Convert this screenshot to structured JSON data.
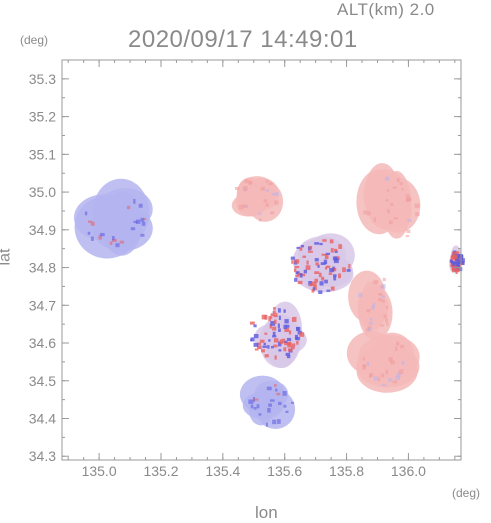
{
  "header": {
    "altitude": "ALT(km) 2.0",
    "timestamp": "2020/09/17 14:49:01"
  },
  "chart_data": {
    "type": "heatmap",
    "title": "2020/09/17 14:49:01",
    "subtitle": "ALT(km) 2.0",
    "xlabel": "lon",
    "ylabel": "lat",
    "x_unit": "(deg)",
    "y_unit": "(deg)",
    "xlim": [
      134.88,
      136.17
    ],
    "ylim": [
      34.29,
      35.35
    ],
    "x_ticks": [
      135.0,
      135.2,
      135.4,
      135.6,
      135.8,
      136.0
    ],
    "x_tick_labels": [
      "135.0",
      "135.2",
      "135.4",
      "135.6",
      "135.8",
      "136.0"
    ],
    "y_ticks": [
      34.3,
      34.4,
      34.5,
      34.6,
      34.7,
      34.8,
      34.9,
      35.0,
      35.1,
      35.2,
      35.3
    ],
    "y_tick_labels": [
      "34.3",
      "34.4",
      "34.5",
      "34.6",
      "34.7",
      "34.8",
      "34.9",
      "35.0",
      "35.1",
      "35.2",
      "35.3"
    ],
    "grid": false,
    "colors": {
      "positive": "#f4b8b8",
      "negative": "#b4b4f0",
      "strong_positive": "#e86060",
      "strong_negative": "#5a5ae0"
    },
    "echo_regions": [
      {
        "name": "northwest-cluster",
        "sign": "negative",
        "lon": [
          134.93,
          135.18
        ],
        "lat": [
          34.83,
          35.03
        ]
      },
      {
        "name": "north-center",
        "sign": "positive",
        "lon": [
          135.42,
          135.59
        ],
        "lat": [
          34.92,
          35.05
        ]
      },
      {
        "name": "northeast-large",
        "sign": "positive",
        "lon": [
          135.84,
          136.04
        ],
        "lat": [
          34.86,
          35.06
        ]
      },
      {
        "name": "east-center",
        "sign": "positive",
        "lon": [
          135.82,
          135.96
        ],
        "lat": [
          34.62,
          34.79
        ]
      },
      {
        "name": "east-edge",
        "sign": "mixed",
        "lon": [
          136.13,
          136.17
        ],
        "lat": [
          34.79,
          34.85
        ]
      },
      {
        "name": "band-middle",
        "sign": "mixed",
        "lon": [
          135.6,
          135.82
        ],
        "lat": [
          34.73,
          34.89
        ]
      },
      {
        "name": "central-mixed",
        "sign": "mixed",
        "lon": [
          135.47,
          135.66
        ],
        "lat": [
          34.55,
          34.71
        ]
      },
      {
        "name": "south-blue",
        "sign": "negative",
        "lon": [
          135.47,
          135.64
        ],
        "lat": [
          34.38,
          34.5
        ]
      },
      {
        "name": "southeast-red",
        "sign": "positive",
        "lon": [
          135.81,
          136.04
        ],
        "lat": [
          34.48,
          34.62
        ]
      }
    ]
  }
}
